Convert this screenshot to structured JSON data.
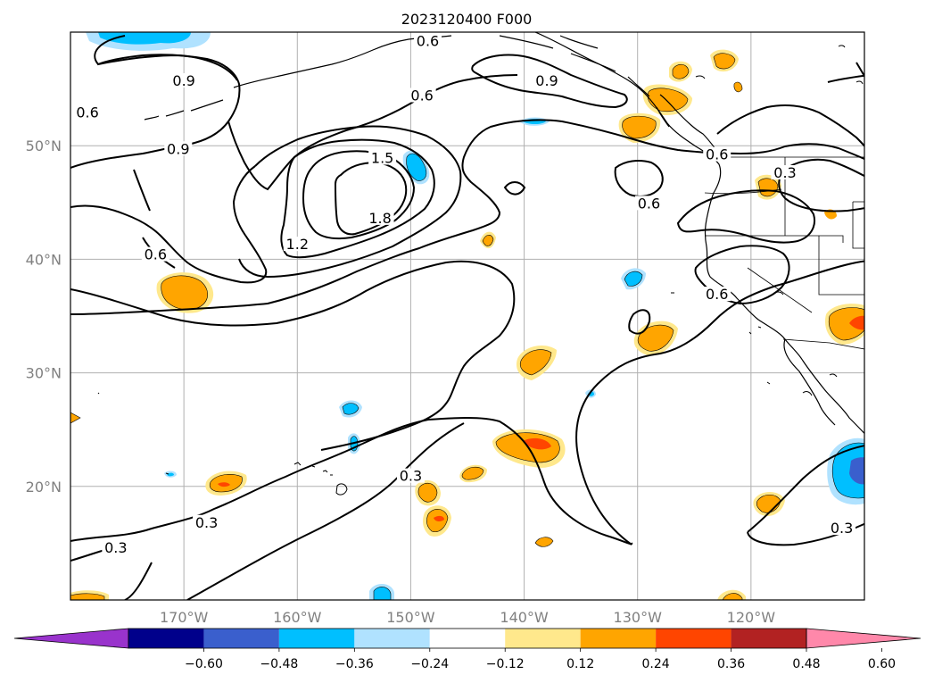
{
  "title": "2023120400 F000",
  "map": {
    "lon_range": [
      -180,
      -110
    ],
    "lat_range": [
      10,
      60
    ],
    "grid": true,
    "longitude_ticks": [
      {
        "lon": -170,
        "label": "170°W"
      },
      {
        "lon": -160,
        "label": "160°W"
      },
      {
        "lon": -150,
        "label": "150°W"
      },
      {
        "lon": -140,
        "label": "140°W"
      },
      {
        "lon": -130,
        "label": "130°W"
      },
      {
        "lon": -120,
        "label": "120°W"
      }
    ],
    "latitude_ticks": [
      {
        "lat": 50,
        "label": "50°N"
      },
      {
        "lat": 40,
        "label": "40°N"
      },
      {
        "lat": 30,
        "label": "30°N"
      },
      {
        "lat": 20,
        "label": "20°N"
      }
    ],
    "contour_labels": [
      {
        "text": "0.6",
        "lon": -148.5,
        "lat": 59.1
      },
      {
        "text": "0.9",
        "lon": -170.0,
        "lat": 55.6
      },
      {
        "text": "0.9",
        "lon": -138.0,
        "lat": 55.6
      },
      {
        "text": "0.6",
        "lon": -149.0,
        "lat": 54.3
      },
      {
        "text": "0.6",
        "lon": -178.5,
        "lat": 52.8
      },
      {
        "text": "0.9",
        "lon": -170.5,
        "lat": 49.6
      },
      {
        "text": "1.5",
        "lon": -152.5,
        "lat": 48.8
      },
      {
        "text": "0.6",
        "lon": -123.0,
        "lat": 49.1
      },
      {
        "text": "0.3",
        "lon": -117.0,
        "lat": 47.5
      },
      {
        "text": "0.6",
        "lon": -129.0,
        "lat": 44.8
      },
      {
        "text": "1.8",
        "lon": -152.7,
        "lat": 43.5
      },
      {
        "text": "1.2",
        "lon": -160.0,
        "lat": 41.2
      },
      {
        "text": "0.6",
        "lon": -172.5,
        "lat": 40.3
      },
      {
        "text": "0.6",
        "lon": -123.0,
        "lat": 36.8
      },
      {
        "text": "0.3",
        "lon": -150.0,
        "lat": 20.8
      },
      {
        "text": "0.3",
        "lon": -168.0,
        "lat": 16.7
      },
      {
        "text": "0.3",
        "lon": -176.0,
        "lat": 14.5
      },
      {
        "text": "0.3",
        "lon": -112.0,
        "lat": 16.2
      }
    ]
  },
  "colorbar": {
    "colors": [
      "#9933cc",
      "#00008b",
      "#3a5fcd",
      "#00bfff",
      "#b0e2ff",
      "#ffffff",
      "#ffe88c",
      "#ffa500",
      "#ff4500",
      "#b22222",
      "#ff88aa"
    ],
    "tick_labels": [
      "−0.60",
      "−0.48",
      "−0.36",
      "−0.24",
      "−0.12",
      "0.12",
      "0.24",
      "0.36",
      "0.48",
      "0.60"
    ]
  }
}
